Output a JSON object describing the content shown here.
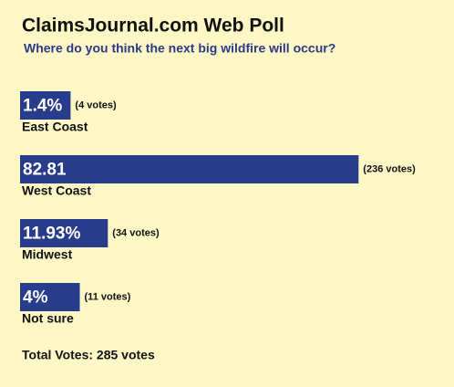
{
  "chart_data": {
    "type": "poll",
    "title": "ClaimsJournal.com Web Poll",
    "subtitle": "Where do you think the next big wildfire will occur?",
    "categories": [
      "East Coast",
      "West Coast",
      "Midwest",
      "Not sure"
    ],
    "values": [
      1.4,
      82.81,
      11.93,
      4
    ],
    "value_labels": [
      "1.4%",
      "82.81",
      "11.93%",
      "4%"
    ],
    "votes": [
      4,
      236,
      34,
      11
    ],
    "vote_labels": [
      "(4 votes)",
      "(236 votes)",
      "(34 votes)",
      "(11 votes)"
    ],
    "color": "#283c8c",
    "total_label": "Total Votes: 285 votes"
  }
}
